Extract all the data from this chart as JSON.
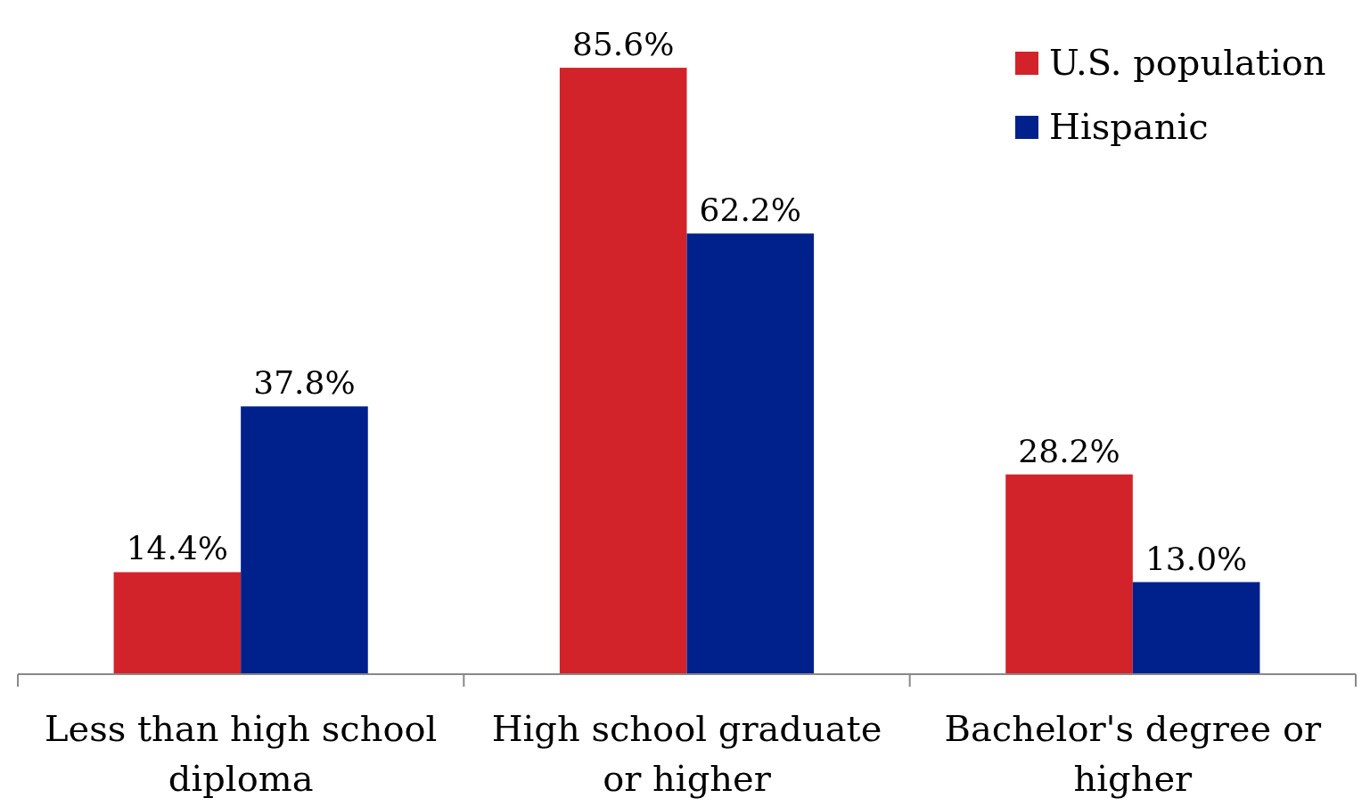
{
  "chart_data": {
    "type": "bar",
    "categories": [
      "Less than high school diploma",
      "High school graduate or higher",
      "Bachelor's degree or higher"
    ],
    "series": [
      {
        "name": "U.S. population",
        "color": "#d2232a",
        "values": [
          14.4,
          85.6,
          28.2
        ],
        "value_labels": [
          "14.4%",
          "85.6%",
          "28.2%"
        ]
      },
      {
        "name": "Hispanic",
        "color": "#00208c",
        "values": [
          37.8,
          62.2,
          13.0
        ],
        "value_labels": [
          "37.8%",
          "62.2%",
          "13.0%"
        ]
      }
    ],
    "legend": "top right"
  }
}
